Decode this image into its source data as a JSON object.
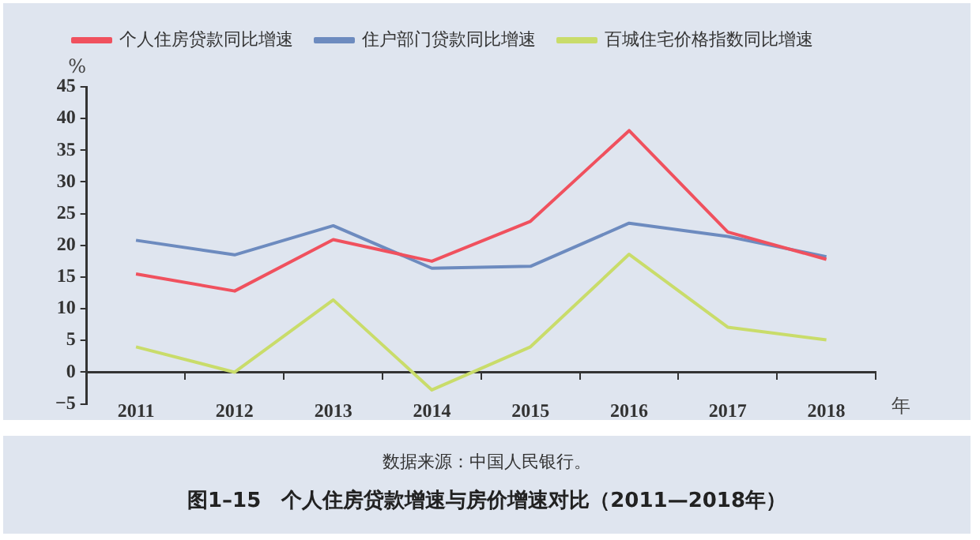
{
  "chart_data": {
    "type": "line",
    "title": "图1–15　个人住房贷款增速与房价增速对比（2011—2018年）",
    "ylabel": "%",
    "xlabel": "年",
    "annotations": [
      "数据来源：中国人民银行。"
    ],
    "categories": [
      "2011",
      "2012",
      "2013",
      "2014",
      "2015",
      "2016",
      "2017",
      "2018"
    ],
    "series": [
      {
        "name": "个人住房贷款同比增速",
        "color": "#f0515e",
        "values": [
          15.5,
          12.8,
          20.9,
          17.5,
          23.8,
          38.1,
          22.1,
          17.8
        ]
      },
      {
        "name": "住户部门贷款同比增速",
        "color": "#6d8bbf",
        "values": [
          20.8,
          18.5,
          23.1,
          16.4,
          16.7,
          23.5,
          21.4,
          18.2
        ]
      },
      {
        "name": "百城住宅价格指数同比增速",
        "color": "#c9dc6a",
        "values": [
          4.0,
          0,
          11.4,
          -2.8,
          4.0,
          18.6,
          7.1,
          5.1
        ]
      }
    ],
    "ylim": [
      -5,
      45
    ],
    "yticks": [
      -5,
      0,
      5,
      10,
      15,
      20,
      25,
      30,
      35,
      40,
      45
    ],
    "grid": false,
    "legend": "top",
    "marker": "none",
    "line_style": "solid"
  }
}
